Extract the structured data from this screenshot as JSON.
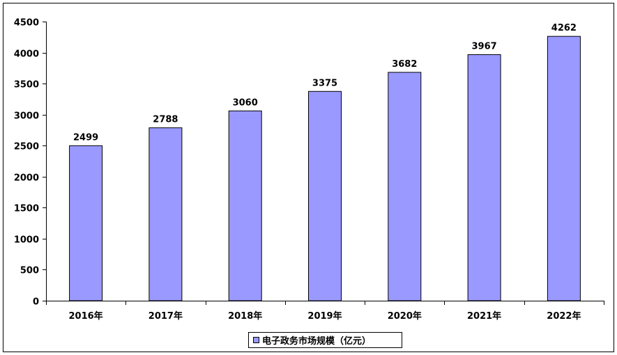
{
  "chart_data": {
    "type": "bar",
    "categories": [
      "2016年",
      "2017年",
      "2018年",
      "2019年",
      "2020年",
      "2021年",
      "2022年"
    ],
    "series": [
      {
        "name": "电子政务市场规模（亿元）",
        "values": [
          2499,
          2788,
          3060,
          3375,
          3682,
          3967,
          4262
        ]
      }
    ],
    "ylim": [
      0,
      4500
    ],
    "yticks": [
      0,
      500,
      1000,
      1500,
      2000,
      2500,
      3000,
      3500,
      4000,
      4500
    ],
    "grid": false,
    "legend_position": "bottom",
    "bar_color": "#9999FF"
  }
}
